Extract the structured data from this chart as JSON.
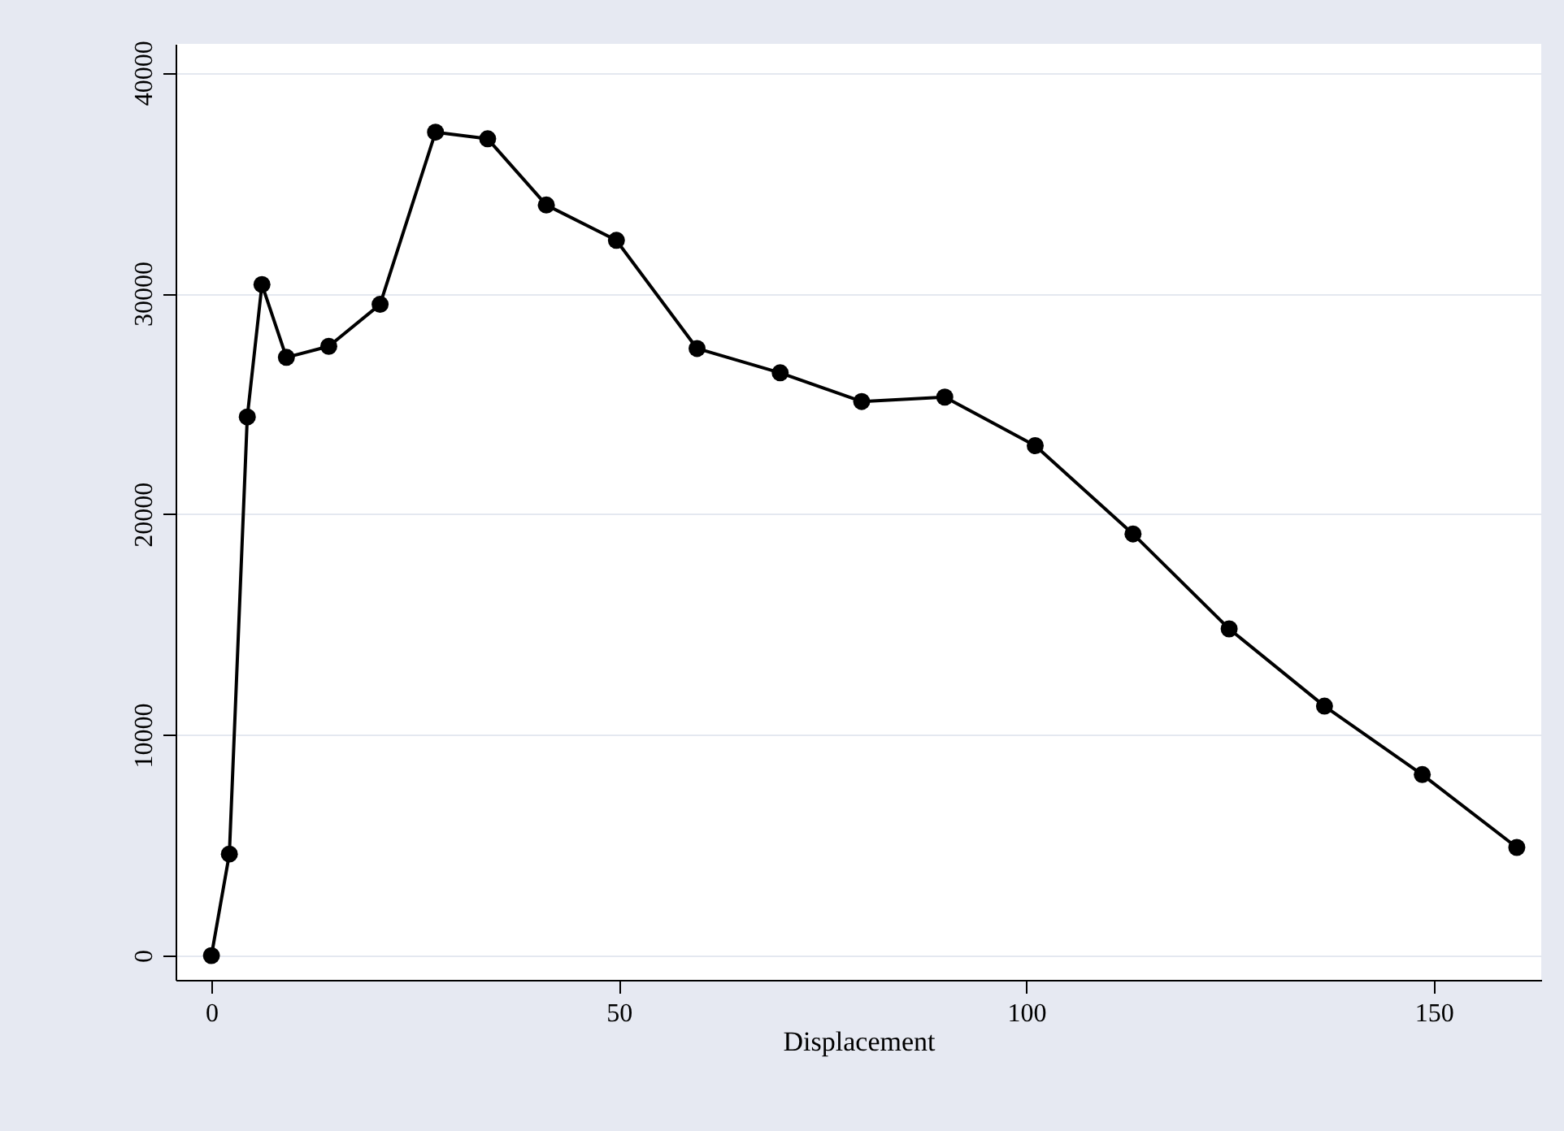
{
  "chart_data": {
    "type": "line",
    "xlabel": "Displacement",
    "x": [
      0,
      2.2,
      4.4,
      6.2,
      9.2,
      14.4,
      20.7,
      27.5,
      33.9,
      41.1,
      49.7,
      59.6,
      69.8,
      79.8,
      90,
      101.1,
      113.1,
      124.9,
      136.6,
      148.6,
      160.2
    ],
    "series": [
      {
        "color": "#000000",
        "values": [
          0,
          4600,
          24400,
          30400,
          27100,
          27600,
          29500,
          37300,
          37000,
          34000,
          32400,
          27500,
          26400,
          25100,
          25300,
          23100,
          19100,
          14800,
          11300,
          8200,
          4900
        ]
      }
    ],
    "xlim": [
      -4.4,
      163.2
    ],
    "ylim": [
      -1100,
      41300
    ],
    "xticks": [
      0,
      50,
      100,
      150
    ],
    "yticks": [
      0,
      10000,
      20000,
      30000,
      40000
    ],
    "grid": "y",
    "marker": "circle",
    "line_style": "solid"
  }
}
